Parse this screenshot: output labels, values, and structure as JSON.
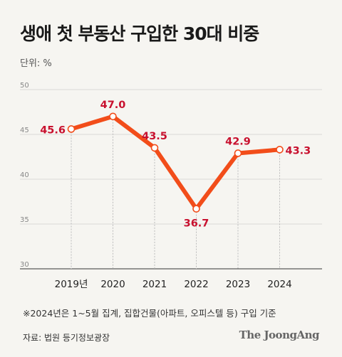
{
  "title": "생애 첫 부동산 구입한 30대 비중",
  "unit_label": "단위: %",
  "footnote": "※2024년은 1~5월 집계, 집합건물(아파트, 오피스텔 등) 구입 기준",
  "source": "자료: 법원 등기정보광장",
  "brand": "The JoongAng",
  "colors": {
    "accent": "#f24d1a",
    "label": "#c8102e",
    "background": "#f6f5f1"
  },
  "chart_data": {
    "type": "line",
    "categories": [
      "2019년",
      "2020",
      "2021",
      "2022",
      "2023",
      "2024"
    ],
    "values": [
      45.6,
      47.0,
      43.5,
      36.7,
      42.9,
      43.3
    ],
    "value_labels": [
      "45.6",
      "47.0",
      "43.5",
      "36.7",
      "42.9",
      "43.3"
    ],
    "label_positions": [
      "left",
      "above",
      "above",
      "below",
      "above",
      "right"
    ],
    "ylim": [
      30,
      50
    ],
    "yticks": [
      30,
      35,
      40,
      45,
      50
    ],
    "ytick_labels": [
      "30",
      "35",
      "40",
      "45",
      "50"
    ],
    "grid": true
  }
}
